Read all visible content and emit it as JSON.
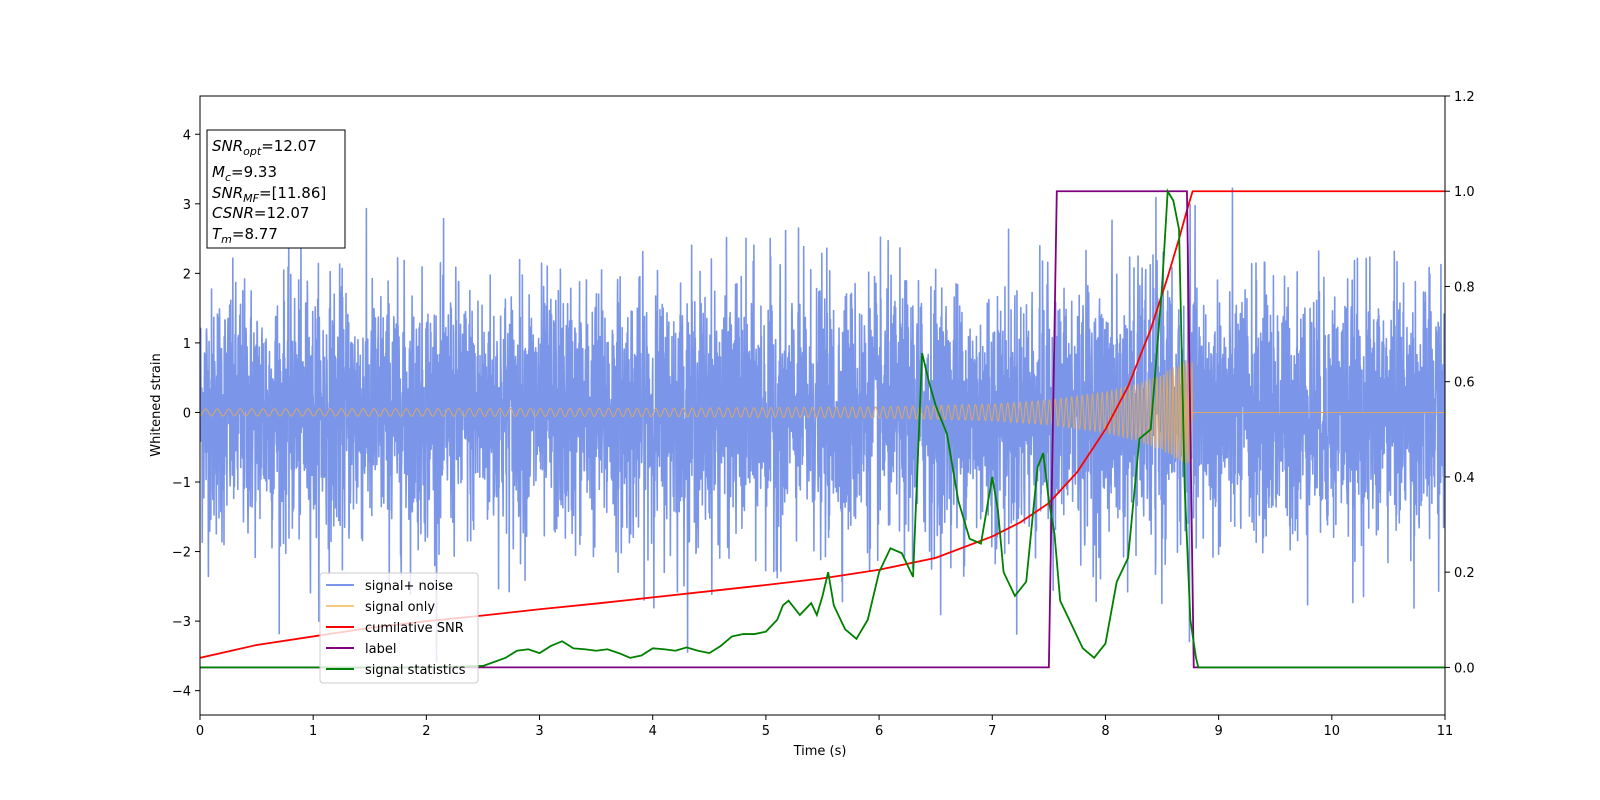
{
  "chart_data": {
    "type": "line",
    "xlabel": "Time (s)",
    "ylabel": "Whitened strain",
    "xlim": [
      0,
      11
    ],
    "ylim_left": [
      -4.35,
      4.55
    ],
    "ylim_right": [
      -0.1,
      1.2
    ],
    "x_ticks": [
      "0",
      "1",
      "2",
      "3",
      "4",
      "5",
      "6",
      "7",
      "8",
      "9",
      "10",
      "11"
    ],
    "y_ticks_left": [
      "−4",
      "−3",
      "−2",
      "−1",
      "0",
      "1",
      "2",
      "3",
      "4"
    ],
    "y_ticks_right": [
      "0.0",
      "0.2",
      "0.4",
      "0.6",
      "0.8",
      "1.0",
      "1.2"
    ],
    "info_box": {
      "snr_opt": {
        "sym": "SNR",
        "sub": "opt",
        "value": "=12.07"
      },
      "mc": {
        "sym": "M",
        "sub": "c",
        "value": "=9.33"
      },
      "snr_mf": {
        "sym": "SNR",
        "sub": "MF",
        "value": "=[11.86]"
      },
      "csnr": {
        "sym": "CSNR",
        "sub": "",
        "value": "=12.07"
      },
      "tm": {
        "sym": "T",
        "sub": "m",
        "value": "=8.77"
      }
    },
    "legend": {
      "position": "lower-left",
      "entries": [
        {
          "label": "signal+ noise",
          "color": "#7b96e8"
        },
        {
          "label": "signal only",
          "color": "#f5c97e"
        },
        {
          "label": "cumilative SNR",
          "color": "#ff0000"
        },
        {
          "label": "label",
          "color": "#800080"
        },
        {
          "label": "signal statistics",
          "color": "#008000"
        }
      ]
    },
    "series": [
      {
        "name": "signal+ noise",
        "axis": "left",
        "kind": "random noise, std ≈ 0.9, range approx −3.9 to 4.2",
        "sample_dt": 0.002,
        "color": "#7b96e8"
      },
      {
        "name": "signal only",
        "axis": "left",
        "kind": "chirp oscillation growing in amplitude until merger at t ≈ 8.77, then zero",
        "envelope": {
          "t": [
            0,
            2,
            4,
            6,
            7,
            7.5,
            8,
            8.3,
            8.5,
            8.65,
            8.77
          ],
          "amp": [
            0.05,
            0.055,
            0.06,
            0.08,
            0.12,
            0.18,
            0.3,
            0.42,
            0.55,
            0.7,
            0.8
          ]
        },
        "color": "#d9a86a"
      },
      {
        "name": "cumilative SNR",
        "axis": "right",
        "x": [
          0,
          0.5,
          1,
          1.5,
          2,
          2.5,
          3,
          3.5,
          4,
          4.5,
          5,
          5.5,
          6,
          6.5,
          7,
          7.25,
          7.5,
          7.75,
          8,
          8.2,
          8.4,
          8.55,
          8.65,
          8.72,
          8.77,
          8.78,
          11
        ],
        "y": [
          0.02,
          0.047,
          0.065,
          0.083,
          0.097,
          0.109,
          0.122,
          0.134,
          0.147,
          0.16,
          0.173,
          0.187,
          0.205,
          0.23,
          0.275,
          0.305,
          0.345,
          0.41,
          0.5,
          0.59,
          0.71,
          0.82,
          0.9,
          0.96,
          1.0,
          1.0,
          1.0
        ],
        "color": "#ff0000"
      },
      {
        "name": "label",
        "axis": "right",
        "x": [
          0,
          7.5,
          7.57,
          8.72,
          8.78,
          11
        ],
        "y": [
          0,
          0,
          1,
          1,
          0,
          0
        ],
        "color": "#800080"
      },
      {
        "name": "signal statistics",
        "axis": "right",
        "x": [
          0,
          0.5,
          1,
          1.5,
          2,
          2.5,
          2.7,
          2.8,
          2.9,
          3.0,
          3.1,
          3.2,
          3.3,
          3.4,
          3.5,
          3.6,
          3.7,
          3.8,
          3.9,
          4.0,
          4.1,
          4.2,
          4.3,
          4.4,
          4.5,
          4.6,
          4.7,
          4.8,
          4.9,
          5.0,
          5.1,
          5.15,
          5.2,
          5.3,
          5.4,
          5.45,
          5.5,
          5.55,
          5.6,
          5.7,
          5.8,
          5.9,
          6.0,
          6.1,
          6.2,
          6.3,
          6.38,
          6.44,
          6.5,
          6.55,
          6.6,
          6.7,
          6.8,
          6.9,
          7.0,
          7.05,
          7.1,
          7.2,
          7.3,
          7.4,
          7.45,
          7.5,
          7.55,
          7.6,
          7.7,
          7.8,
          7.9,
          8.0,
          8.1,
          8.2,
          8.3,
          8.4,
          8.5,
          8.55,
          8.6,
          8.65,
          8.7,
          8.75,
          8.8,
          8.82,
          11
        ],
        "y": [
          0,
          0,
          0,
          0,
          0,
          0.003,
          0.02,
          0.035,
          0.038,
          0.03,
          0.045,
          0.055,
          0.04,
          0.038,
          0.035,
          0.038,
          0.03,
          0.02,
          0.025,
          0.04,
          0.038,
          0.035,
          0.042,
          0.035,
          0.03,
          0.045,
          0.065,
          0.07,
          0.07,
          0.075,
          0.1,
          0.13,
          0.14,
          0.11,
          0.135,
          0.11,
          0.15,
          0.2,
          0.13,
          0.08,
          0.06,
          0.1,
          0.2,
          0.25,
          0.24,
          0.19,
          0.66,
          0.6,
          0.55,
          0.52,
          0.49,
          0.35,
          0.27,
          0.26,
          0.4,
          0.33,
          0.2,
          0.15,
          0.18,
          0.42,
          0.45,
          0.35,
          0.28,
          0.14,
          0.09,
          0.04,
          0.02,
          0.05,
          0.18,
          0.23,
          0.48,
          0.5,
          0.8,
          1.0,
          0.98,
          0.92,
          0.38,
          0.1,
          0.02,
          0.0,
          0.0
        ],
        "color": "#008000"
      }
    ]
  }
}
